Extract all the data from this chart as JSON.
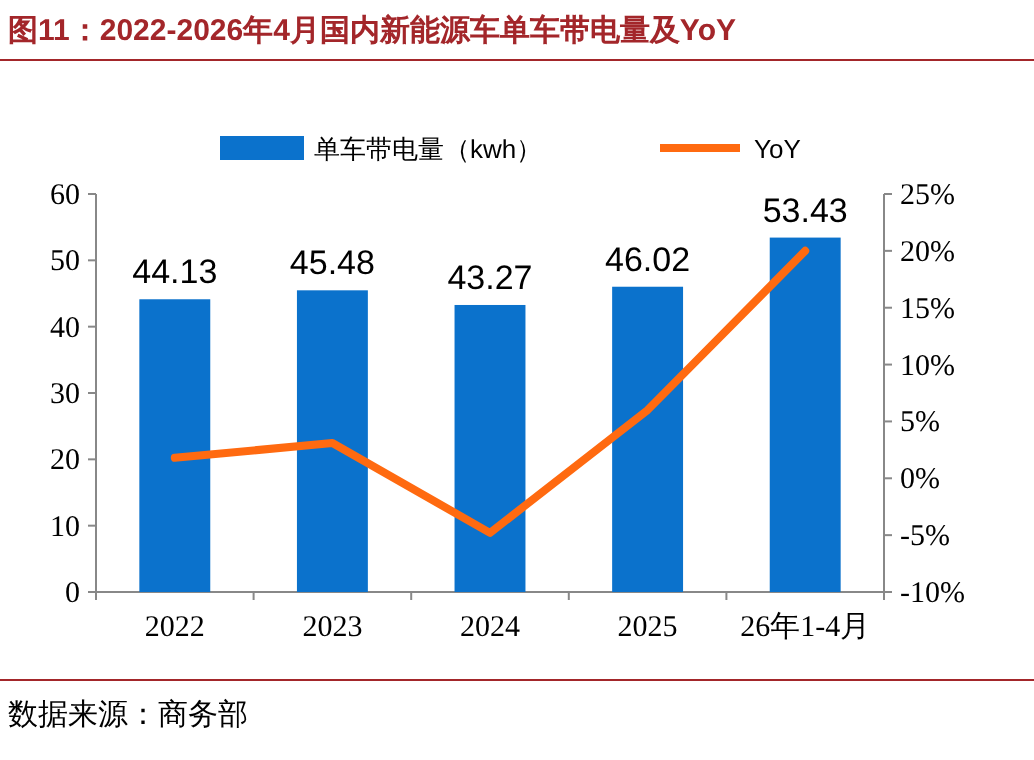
{
  "chart_data": {
    "type": "bar",
    "title": "图11：2022-2026年4月国内新能源车单车带电量及YoY",
    "annotations": [
      "数据来源：商务部"
    ],
    "categories": [
      "2022",
      "2023",
      "2024",
      "2025",
      "26年1-4月"
    ],
    "series": [
      {
        "name": "单车带电量（kwh）",
        "color": "#0b72cc",
        "values": [
          44.13,
          45.48,
          43.27,
          46.02,
          53.43
        ],
        "value_labels": [
          "44.13",
          "45.48",
          "43.27",
          "46.02",
          "53.43"
        ]
      },
      {
        "name": "YoY",
        "type": "line",
        "axis": "y2",
        "color": "#ff6a10",
        "values": [
          1.8,
          3.1,
          -4.8,
          6.0,
          20.0
        ]
      }
    ],
    "ylim": [
      0,
      60
    ],
    "yticks": [
      0,
      10,
      20,
      30,
      40,
      50,
      60
    ],
    "y2lim": [
      -10,
      25
    ],
    "y2ticks": [
      {
        "value": -10,
        "label": "-10%"
      },
      {
        "value": -5,
        "label": "-5%"
      },
      {
        "value": 0,
        "label": "0%"
      },
      {
        "value": 5,
        "label": "5%"
      },
      {
        "value": 10,
        "label": "10%"
      },
      {
        "value": 15,
        "label": "15%"
      },
      {
        "value": 20,
        "label": "20%"
      },
      {
        "value": 25,
        "label": "25%"
      }
    ],
    "legend": "top",
    "marker": "none",
    "line_style": "solid"
  }
}
